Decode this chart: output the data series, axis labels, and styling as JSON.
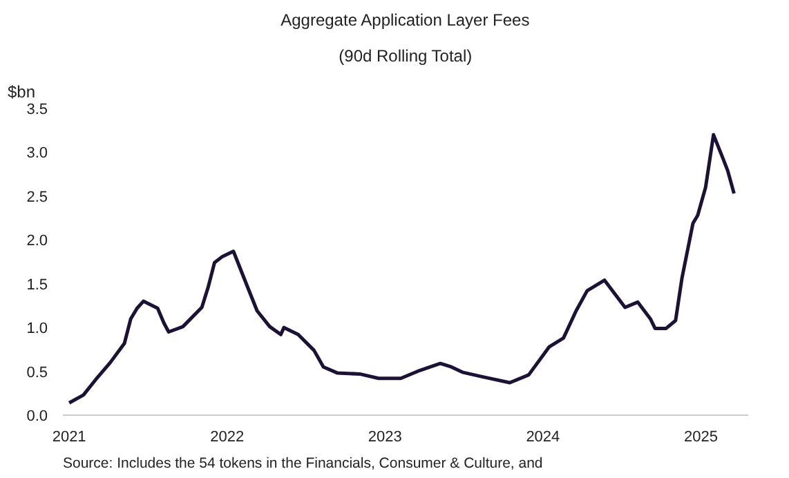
{
  "chart_data": {
    "type": "line",
    "title": "Aggregate Application Layer Fees",
    "subtitle": "(90d Rolling Total)",
    "ylabel": "$bn",
    "annotations": [
      "Source: Includes the 54 tokens in the Financials, Consumer & Culture, and"
    ],
    "x": [
      2021.0,
      2021.09,
      2021.17,
      2021.26,
      2021.35,
      2021.39,
      2021.43,
      2021.47,
      2021.56,
      2021.6,
      2021.63,
      2021.72,
      2021.84,
      2021.88,
      2021.92,
      2021.97,
      2022.04,
      2022.13,
      2022.19,
      2022.27,
      2022.34,
      2022.36,
      2022.45,
      2022.55,
      2022.61,
      2022.7,
      2022.84,
      2022.96,
      2023.07,
      2023.1,
      2023.22,
      2023.35,
      2023.42,
      2023.49,
      2023.61,
      2023.79,
      2023.91,
      2024.04,
      2024.13,
      2024.21,
      2024.28,
      2024.39,
      2024.52,
      2024.6,
      2024.68,
      2024.71,
      2024.78,
      2024.84,
      2024.88,
      2024.95,
      2024.98,
      2025.03,
      2025.08,
      2025.14,
      2025.17,
      2025.21
    ],
    "series": [
      {
        "color": "#1c1236",
        "values": [
          0.14,
          0.23,
          0.41,
          0.6,
          0.82,
          1.1,
          1.22,
          1.3,
          1.22,
          1.05,
          0.95,
          1.01,
          1.23,
          1.46,
          1.74,
          1.81,
          1.87,
          1.46,
          1.19,
          1.01,
          0.92,
          1.0,
          0.92,
          0.74,
          0.55,
          0.48,
          0.47,
          0.42,
          0.42,
          0.42,
          0.51,
          0.59,
          0.55,
          0.49,
          0.44,
          0.37,
          0.46,
          0.78,
          0.88,
          1.19,
          1.42,
          1.54,
          1.23,
          1.29,
          1.1,
          0.99,
          0.99,
          1.08,
          1.56,
          2.19,
          2.28,
          2.6,
          3.2,
          2.93,
          2.79,
          2.53
        ]
      }
    ],
    "xlim": [
      2020.96,
      2025.3
    ],
    "ylim": [
      0,
      3.5
    ],
    "xticks": [
      2021,
      2022,
      2023,
      2024,
      2025
    ],
    "yticks": [
      {
        "value": 0,
        "label": "0.0"
      },
      {
        "value": 0.5,
        "label": "0.5"
      },
      {
        "value": 1,
        "label": "1.0"
      },
      {
        "value": 1.5,
        "label": "1.5"
      },
      {
        "value": 2,
        "label": "2.0"
      },
      {
        "value": 2.5,
        "label": "2.5"
      },
      {
        "value": 3,
        "label": "3.0"
      },
      {
        "value": 3.5,
        "label": "3.5"
      }
    ],
    "grid": false,
    "line_style": "solid",
    "marker": "none"
  }
}
